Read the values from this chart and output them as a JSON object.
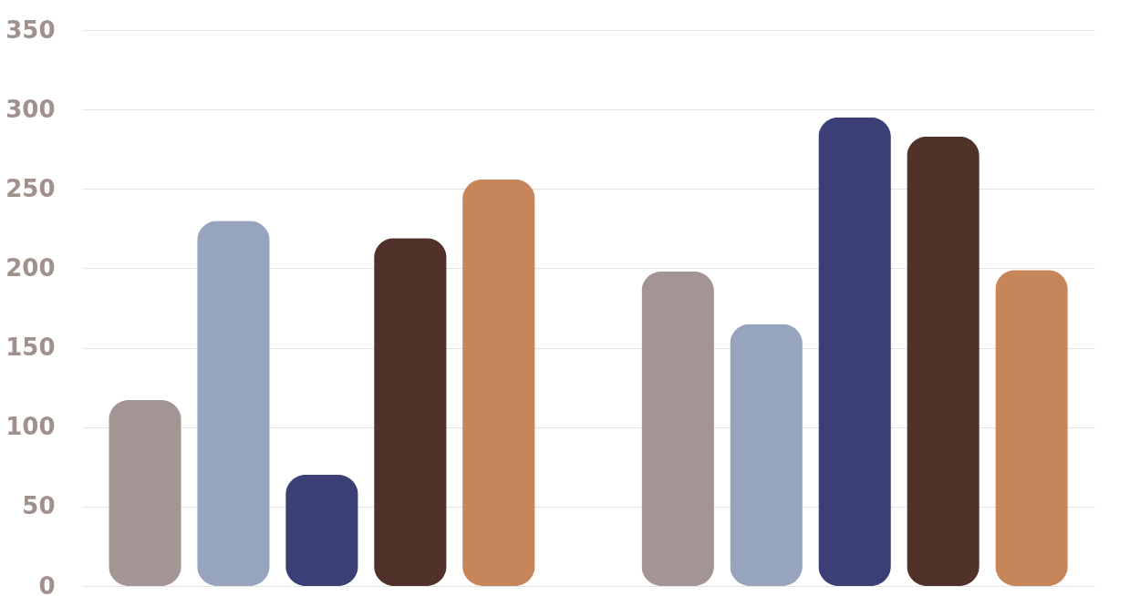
{
  "chart_data": {
    "type": "bar",
    "categories": [
      null,
      null
    ],
    "series": [
      {
        "color": "#a29593",
        "values": [
          117,
          198
        ]
      },
      {
        "color": "#97a4bd",
        "values": [
          230,
          165
        ]
      },
      {
        "color": "#3a3f75",
        "values": [
          70,
          295
        ]
      },
      {
        "color": "#50322a",
        "values": [
          219,
          283
        ]
      },
      {
        "color": "#c6865a",
        "values": [
          256,
          199
        ]
      }
    ],
    "ylim": [
      0,
      350
    ],
    "yticks": [
      0,
      50,
      100,
      150,
      200,
      250,
      300,
      350
    ],
    "grid": "y",
    "legend": false,
    "tick_labels": "y"
  }
}
